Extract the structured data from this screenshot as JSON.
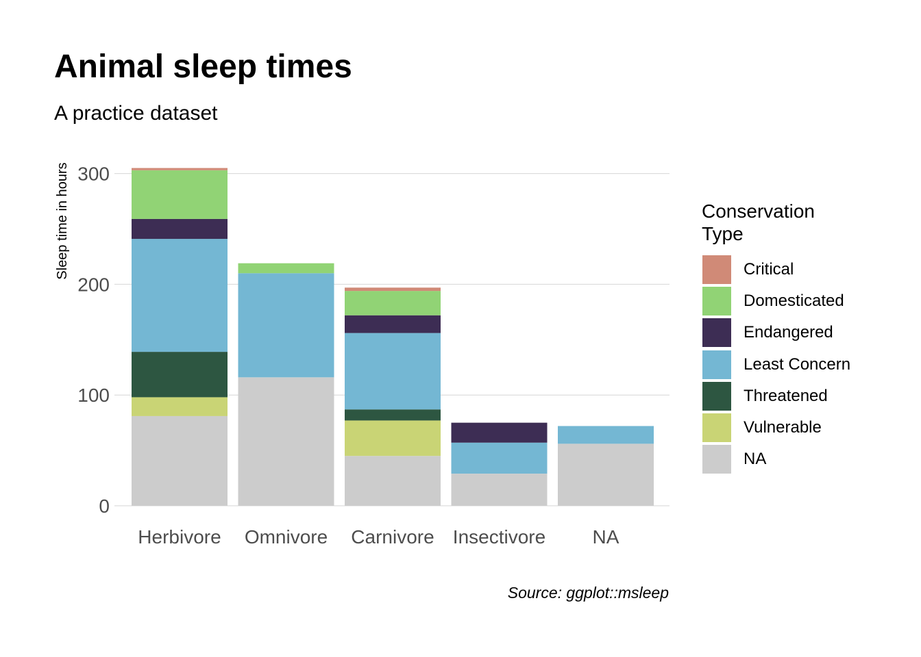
{
  "chart_data": {
    "type": "bar",
    "stacked": true,
    "title": "Animal sleep times",
    "subtitle": "A practice dataset",
    "caption": "Source: ggplot::msleep",
    "xlabel": "",
    "ylabel": "Sleep time in hours",
    "ylim": [
      0,
      305
    ],
    "yticks": [
      0,
      100,
      200,
      300
    ],
    "grid": "horizontal",
    "legend_position": "right",
    "legend_title": "Conservation Type",
    "legend_title_lines": [
      "Conservation",
      "Type"
    ],
    "categories": [
      "Herbivore",
      "Omnivore",
      "Carnivore",
      "Insectivore",
      "NA"
    ],
    "series": [
      {
        "name": "Critical",
        "color": "#d08a77",
        "values": [
          2,
          0,
          3,
          0,
          0
        ]
      },
      {
        "name": "Domesticated",
        "color": "#91d375",
        "values": [
          44,
          9,
          22,
          0,
          0
        ]
      },
      {
        "name": "Endangered",
        "color": "#3d2d54",
        "values": [
          18,
          0,
          16,
          18,
          0
        ]
      },
      {
        "name": "Least Concern",
        "color": "#74b7d3",
        "values": [
          102,
          94,
          69,
          28,
          16
        ]
      },
      {
        "name": "Threatened",
        "color": "#2d5641",
        "values": [
          41,
          0,
          10,
          0,
          0
        ]
      },
      {
        "name": "Vulnerable",
        "color": "#c9d475",
        "values": [
          17,
          0,
          32,
          0,
          0
        ]
      },
      {
        "name": "NA",
        "color": "#cccccc",
        "values": [
          81,
          116,
          45,
          29,
          56
        ]
      }
    ]
  }
}
